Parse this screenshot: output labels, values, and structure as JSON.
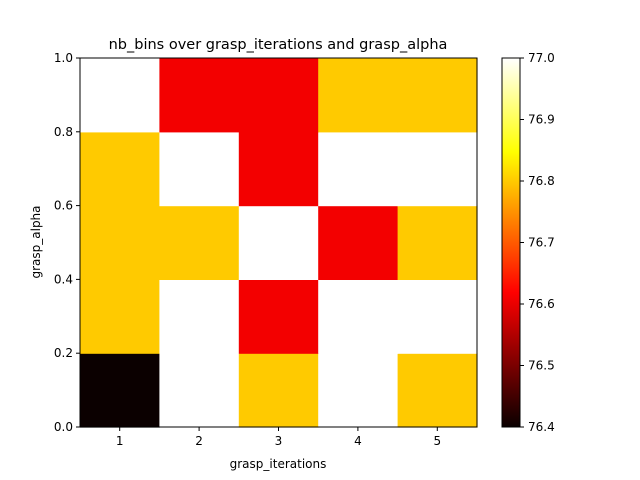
{
  "chart_data": {
    "type": "heatmap",
    "title": "nb_bins over grasp_iterations and grasp_alpha",
    "xlabel": "grasp_iterations",
    "ylabel": "grasp_alpha",
    "x_categories": [
      "1",
      "2",
      "3",
      "4",
      "5"
    ],
    "y_bins": [
      0.0,
      0.2,
      0.4,
      0.6,
      0.8,
      1.0
    ],
    "y_ticks": [
      "0.0",
      "0.2",
      "0.4",
      "0.6",
      "0.8",
      "1.0"
    ],
    "values": [
      [
        76.4,
        77.0,
        76.8,
        77.0,
        76.8
      ],
      [
        76.8,
        77.0,
        76.6,
        77.0,
        77.0
      ],
      [
        76.8,
        76.8,
        77.0,
        76.6,
        76.8
      ],
      [
        76.8,
        77.0,
        76.6,
        77.0,
        77.0
      ],
      [
        77.0,
        76.6,
        76.6,
        76.8,
        76.8
      ]
    ],
    "colormap": "hot",
    "vmin": 76.4,
    "vmax": 77.0,
    "colorbar_ticks": [
      "76.4",
      "76.5",
      "76.6",
      "76.7",
      "76.8",
      "76.9",
      "77.0"
    ],
    "grid": false,
    "colorbar_placement": "right"
  }
}
